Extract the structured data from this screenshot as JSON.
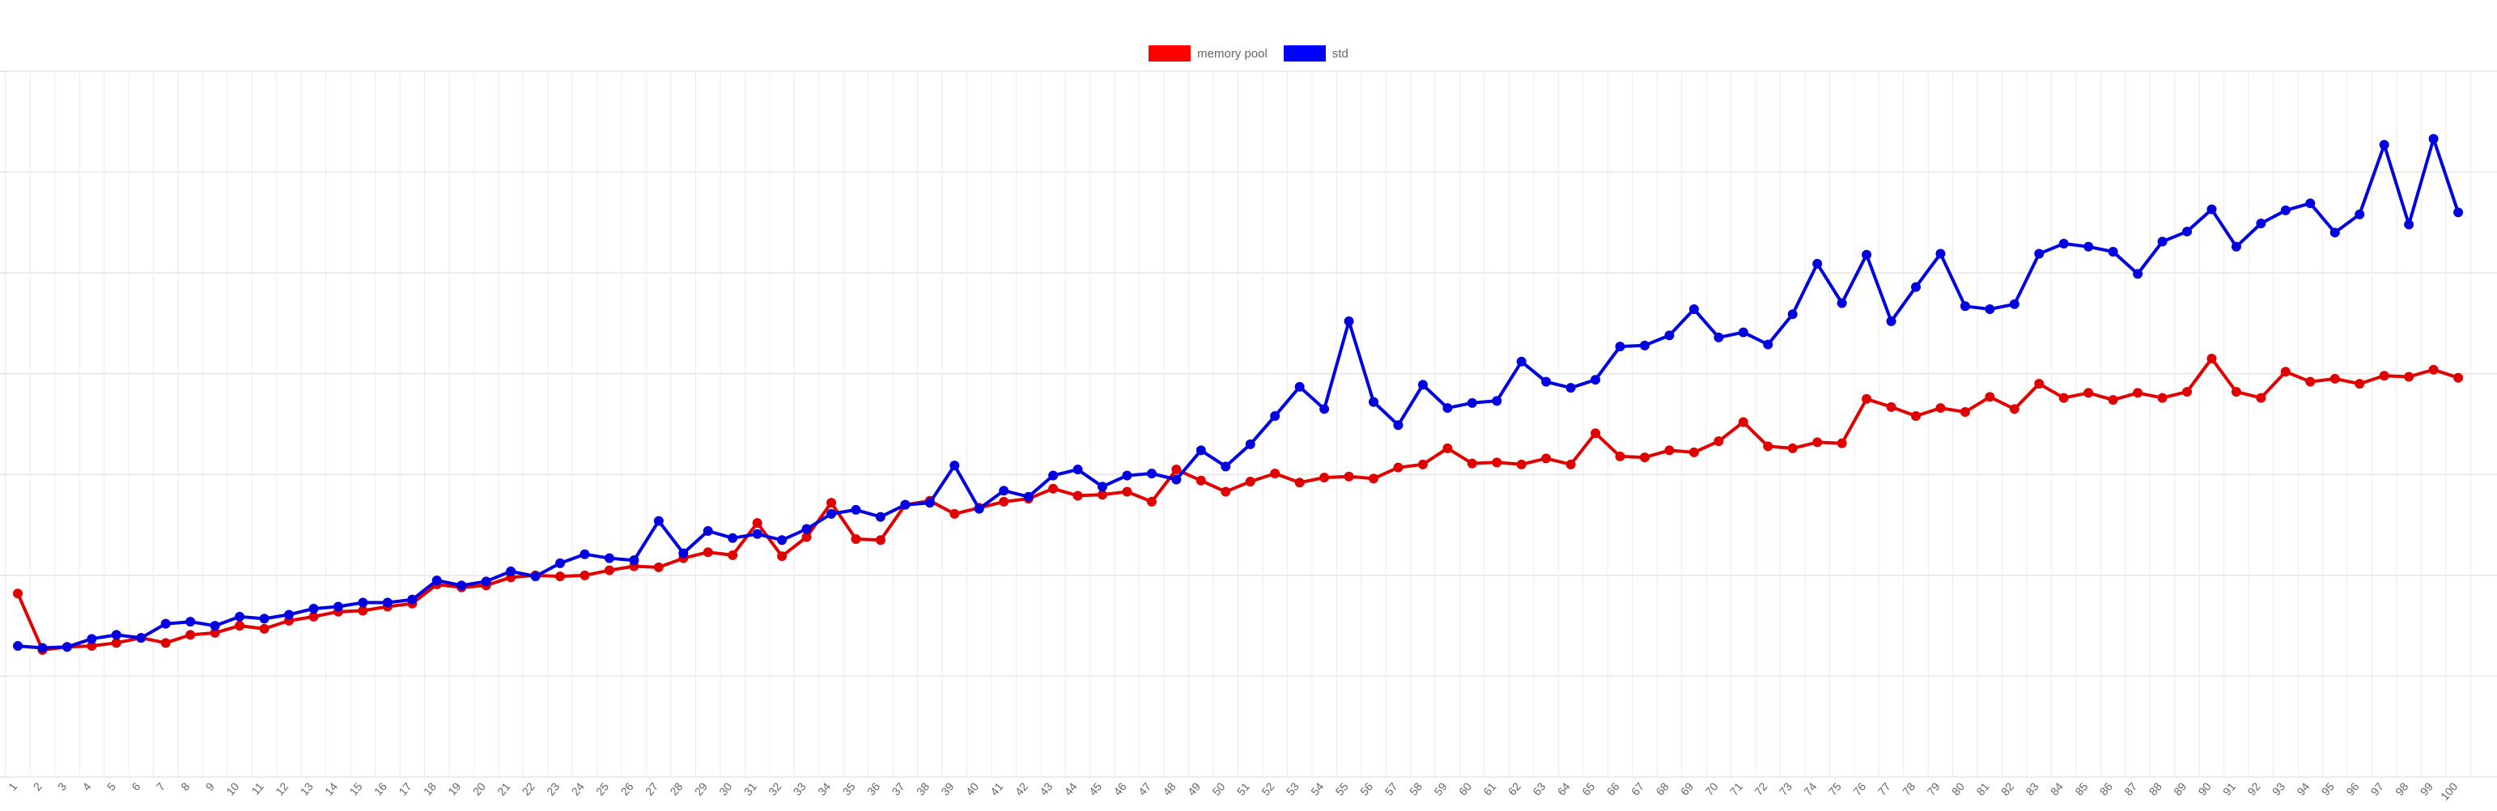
{
  "chart_data": {
    "type": "line",
    "title": "",
    "xlabel": "",
    "ylabel": "",
    "legend_position": "top-center",
    "grid": true,
    "y_tick_labels_shown": false,
    "x": [
      "1",
      "2",
      "3",
      "4",
      "5",
      "6",
      "7",
      "8",
      "9",
      "10",
      "11",
      "12",
      "13",
      "14",
      "15",
      "16",
      "17",
      "18",
      "19",
      "20",
      "21",
      "22",
      "23",
      "24",
      "25",
      "26",
      "27",
      "28",
      "29",
      "30",
      "31",
      "32",
      "33",
      "34",
      "35",
      "36",
      "37",
      "38",
      "39",
      "40",
      "41",
      "42",
      "43",
      "44",
      "45",
      "46",
      "47",
      "48",
      "49",
      "50",
      "51",
      "52",
      "53",
      "54",
      "55",
      "56",
      "57",
      "58",
      "59",
      "60",
      "61",
      "62",
      "63",
      "64",
      "65",
      "66",
      "67",
      "68",
      "69",
      "70",
      "71",
      "72",
      "73",
      "74",
      "75",
      "76",
      "77",
      "78",
      "79",
      "80",
      "81",
      "82",
      "83",
      "84",
      "85",
      "86",
      "87",
      "88",
      "89",
      "90",
      "91",
      "92",
      "93",
      "94",
      "95",
      "96",
      "97",
      "98",
      "99",
      "100"
    ],
    "series": [
      {
        "name": "memory pool",
        "color": "#e00000",
        "values": [
          0.82,
          0.26,
          0.29,
          0.3,
          0.33,
          0.38,
          0.33,
          0.41,
          0.43,
          0.5,
          0.47,
          0.55,
          0.59,
          0.64,
          0.65,
          0.69,
          0.72,
          0.91,
          0.88,
          0.9,
          0.98,
          1.0,
          0.99,
          1.0,
          1.05,
          1.09,
          1.08,
          1.17,
          1.23,
          1.2,
          1.52,
          1.19,
          1.38,
          1.72,
          1.36,
          1.35,
          1.7,
          1.74,
          1.61,
          1.67,
          1.73,
          1.76,
          1.86,
          1.79,
          1.8,
          1.83,
          1.73,
          2.05,
          1.94,
          1.83,
          1.93,
          2.01,
          1.92,
          1.97,
          1.98,
          1.96,
          2.07,
          2.1,
          2.26,
          2.11,
          2.12,
          2.1,
          2.16,
          2.1,
          2.41,
          2.18,
          2.17,
          2.24,
          2.22,
          2.33,
          2.52,
          2.28,
          2.26,
          2.32,
          2.31,
          2.75,
          2.67,
          2.58,
          2.66,
          2.62,
          2.77,
          2.65,
          2.9,
          2.76,
          2.81,
          2.74,
          2.81,
          2.76,
          2.82,
          3.15,
          2.82,
          2.76,
          3.02,
          2.92,
          2.95,
          2.9,
          2.98,
          2.97,
          3.04,
          2.96
        ]
      },
      {
        "name": "std",
        "color": "#0000e0",
        "values": [
          0.3,
          0.28,
          0.29,
          0.37,
          0.41,
          0.38,
          0.52,
          0.54,
          0.5,
          0.59,
          0.57,
          0.61,
          0.67,
          0.69,
          0.73,
          0.73,
          0.76,
          0.95,
          0.9,
          0.94,
          1.04,
          0.99,
          1.12,
          1.21,
          1.17,
          1.15,
          1.54,
          1.22,
          1.44,
          1.37,
          1.41,
          1.35,
          1.46,
          1.61,
          1.65,
          1.58,
          1.7,
          1.72,
          2.09,
          1.66,
          1.84,
          1.78,
          1.99,
          2.05,
          1.88,
          1.99,
          2.01,
          1.95,
          2.24,
          2.08,
          2.3,
          2.58,
          2.87,
          2.65,
          3.52,
          2.72,
          2.49,
          2.89,
          2.66,
          2.71,
          2.73,
          3.12,
          2.92,
          2.86,
          2.94,
          3.27,
          3.28,
          3.38,
          3.64,
          3.36,
          3.41,
          3.29,
          3.59,
          4.09,
          3.7,
          4.18,
          3.52,
          3.86,
          4.19,
          3.67,
          3.64,
          3.69,
          4.19,
          4.29,
          4.26,
          4.21,
          3.99,
          4.31,
          4.41,
          4.63,
          4.26,
          4.49,
          4.62,
          4.69,
          4.4,
          4.58,
          5.27,
          4.48,
          5.33,
          4.6
        ]
      }
    ],
    "ylim": [
      -1,
      6
    ]
  }
}
